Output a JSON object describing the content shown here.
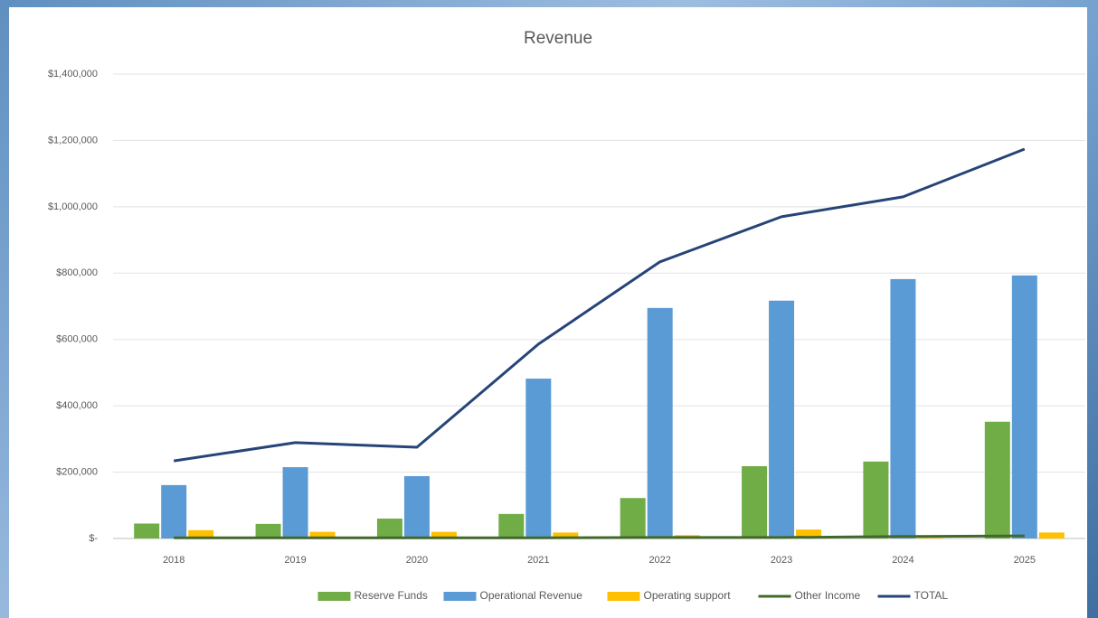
{
  "chart_data": {
    "type": "bar",
    "title": "Revenue",
    "categories": [
      "2018",
      "2019",
      "2020",
      "2021",
      "2022",
      "2023",
      "2024",
      "2025"
    ],
    "series": [
      {
        "name": "Reserve Funds",
        "kind": "bar",
        "color": "#70ad47",
        "values": [
          45000,
          44000,
          60000,
          74000,
          122000,
          218000,
          232000,
          352000
        ]
      },
      {
        "name": "Operational Revenue",
        "kind": "bar",
        "color": "#5b9bd5",
        "values": [
          161000,
          215000,
          188000,
          482000,
          695000,
          717000,
          782000,
          793000
        ]
      },
      {
        "name": "Operating support",
        "kind": "bar",
        "color": "#ffc000",
        "values": [
          25000,
          20000,
          20000,
          18000,
          10000,
          27000,
          2000,
          18000
        ]
      },
      {
        "name": "Other Income",
        "kind": "line",
        "color": "#43682b",
        "values": [
          2000,
          2000,
          2000,
          2000,
          3000,
          3000,
          6000,
          8000
        ]
      },
      {
        "name": "TOTAL",
        "kind": "line",
        "color": "#264478",
        "values": [
          234000,
          289000,
          275000,
          586000,
          834000,
          970000,
          1030000,
          1174000
        ]
      }
    ],
    "ylim": [
      0,
      1400000
    ],
    "yticks": [
      {
        "value": 0,
        "label": "$-"
      },
      {
        "value": 200000,
        "label": "$200,000"
      },
      {
        "value": 400000,
        "label": "$400,000"
      },
      {
        "value": 600000,
        "label": "$600,000"
      },
      {
        "value": 800000,
        "label": "$800,000"
      },
      {
        "value": 1000000,
        "label": "$1,000,000"
      },
      {
        "value": 1200000,
        "label": "$1,200,000"
      },
      {
        "value": 1400000,
        "label": "$1,400,000"
      }
    ],
    "grid": true,
    "legend": "bottom"
  }
}
